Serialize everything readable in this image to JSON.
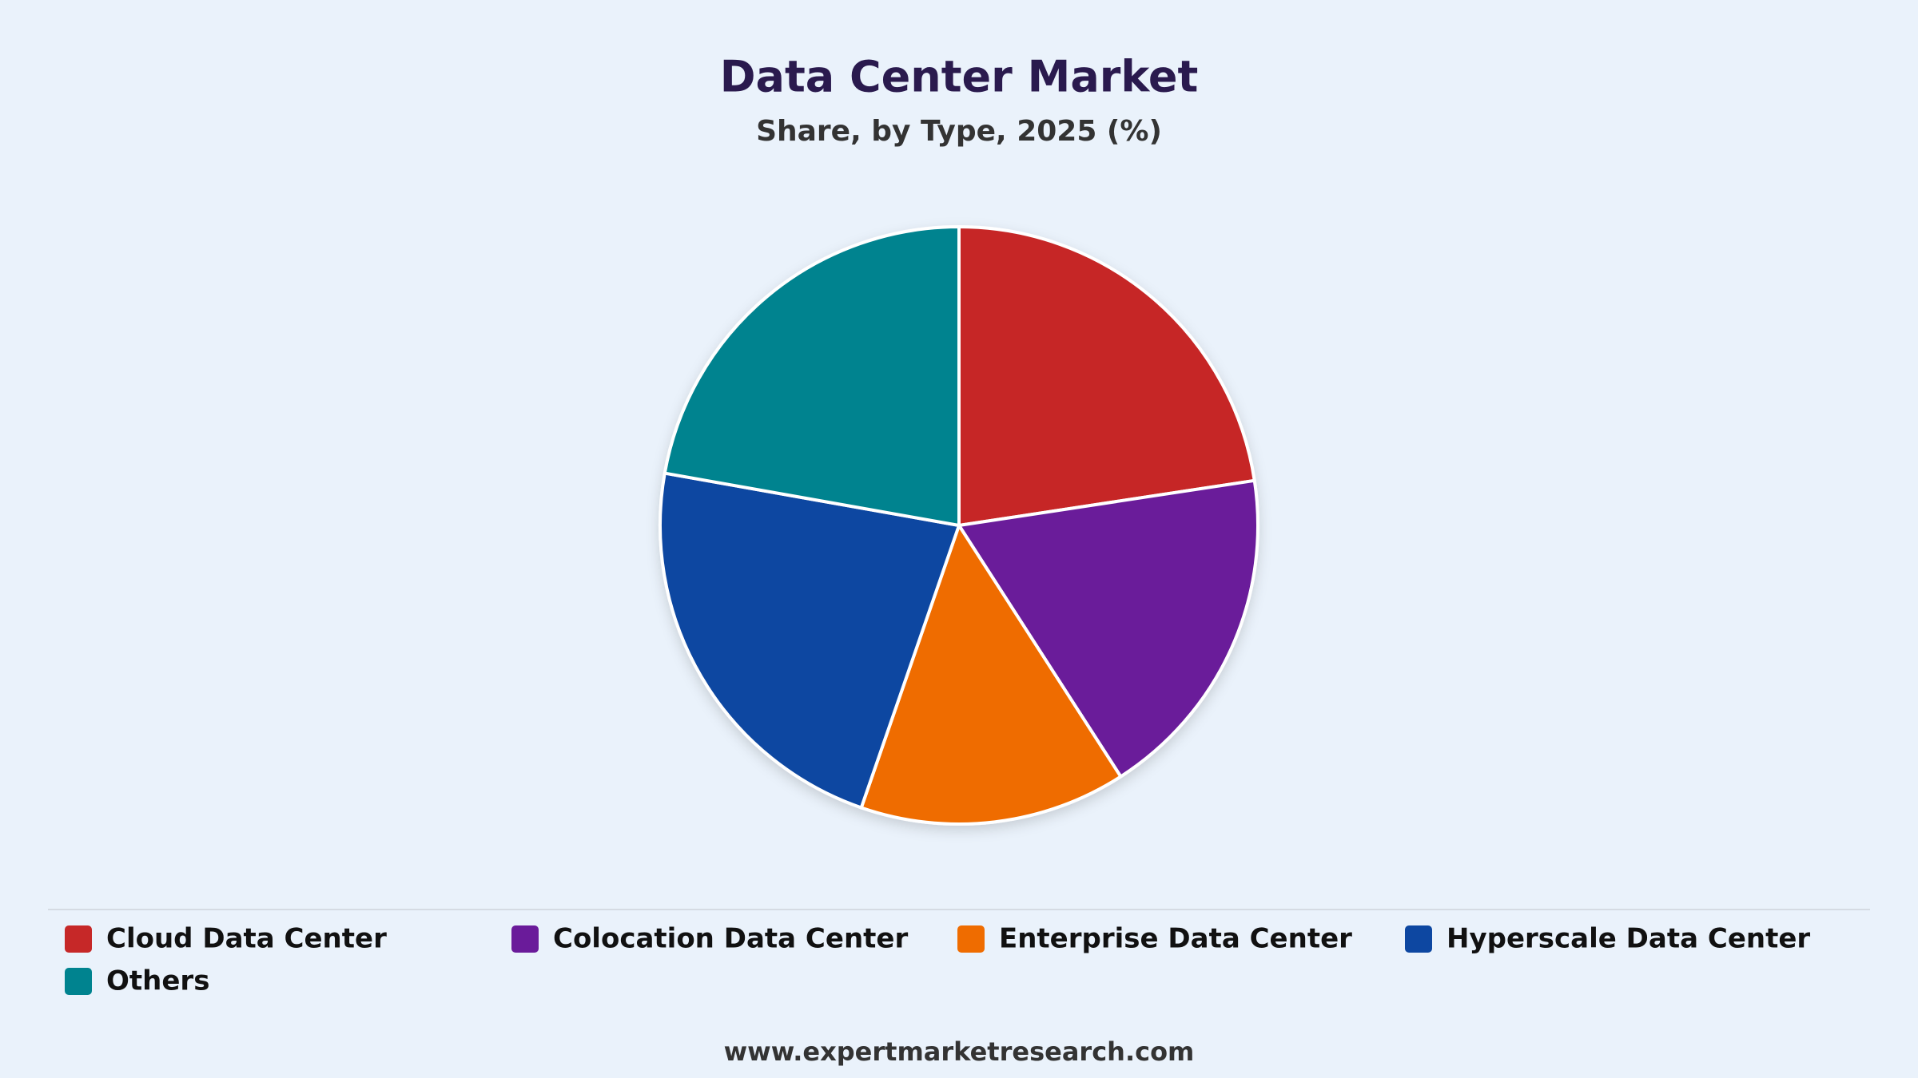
{
  "chart_data": {
    "type": "pie",
    "title": "Data Center Market",
    "subtitle": "Share, by Type, 2025 (%)",
    "categories": [
      "Cloud Data Center",
      "Colocation Data Center",
      "Enterprise Data Center",
      "Hyperscale Data Center",
      "Others"
    ],
    "values": [
      22.6,
      18.3,
      14.4,
      22.5,
      22.2
    ],
    "colors": [
      "#c62828",
      "#6a1b9a",
      "#ef6c00",
      "#0d47a1",
      "#00838f"
    ],
    "legend": "bottom",
    "source": "www.expertmarketresearch.com"
  }
}
